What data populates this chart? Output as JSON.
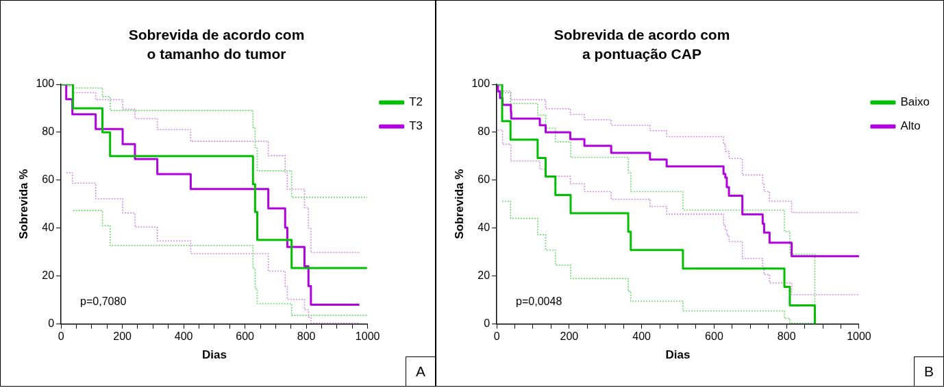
{
  "chart_data": [
    {
      "type": "step",
      "title": "Sobrevida de acordo com o tamanho do tumor",
      "xlabel": "Dias",
      "ylabel": "Sobrevida %",
      "xlim": [
        0,
        1000
      ],
      "ylim": [
        0,
        100
      ],
      "xticks": [
        0,
        {
          "value": 50,
          "label": null
        },
        {
          "value": 100,
          "label": null
        },
        {
          "value": 150,
          "label": null
        },
        200,
        {
          "value": 250,
          "label": null
        },
        {
          "value": 300,
          "label": null
        },
        {
          "value": 350,
          "label": null
        },
        400,
        {
          "value": 450,
          "label": null
        },
        {
          "value": 500,
          "label": null
        },
        {
          "value": 550,
          "label": null
        },
        600,
        {
          "value": 650,
          "label": null
        },
        {
          "value": 700,
          "label": null
        },
        {
          "value": 750,
          "label": null
        },
        800,
        {
          "value": 850,
          "label": null
        },
        {
          "value": 900,
          "label": null
        },
        {
          "value": 950,
          "label": null
        },
        1000
      ],
      "yticks": [
        0,
        20,
        40,
        60,
        80,
        100
      ],
      "grid": false,
      "legend": "right",
      "marker": "none",
      "line_style": "solid",
      "series": [
        {
          "name": "T2",
          "color": "#00c000",
          "x": [
            0,
            39,
            135,
            160,
            626,
            633,
            640,
            752,
            998
          ],
          "values": [
            100,
            90,
            80,
            70,
            58.3,
            46.7,
            35,
            23.3,
            23.3
          ]
        },
        {
          "name": "T3",
          "color": "#b000e0",
          "x": [
            0,
            17,
            37,
            113,
            201,
            241,
            314,
            423,
            676,
            731,
            738,
            794,
            807,
            815,
            973
          ],
          "values": [
            100,
            93.8,
            87.5,
            81.3,
            75,
            68.8,
            62.5,
            56.3,
            48.2,
            40.2,
            32.1,
            24,
            15.8,
            8,
            8
          ]
        },
        {
          "color": "#66dd66",
          "line_style": "dotted",
          "x": [
            39,
            135,
            160,
            626,
            633,
            640,
            752,
            998
          ],
          "values": [
            47.3,
            41,
            32.7,
            23.1,
            14.8,
            8.4,
            3.5,
            3.5
          ]
        },
        {
          "color": "#66dd66",
          "line_style": "dotted",
          "x": [
            39,
            135,
            160,
            626,
            633,
            640,
            752,
            998
          ],
          "values": [
            98.5,
            94.8,
            89.1,
            82,
            73.6,
            63.9,
            52.8,
            52.8
          ]
        },
        {
          "color": "#d888f0",
          "line_style": "dotted",
          "x": [
            17,
            37,
            113,
            201,
            241,
            314,
            423,
            676,
            731,
            738,
            794,
            807,
            815,
            973
          ],
          "values": [
            63.1,
            58.7,
            52.2,
            46.3,
            40.4,
            34.6,
            29.3,
            22,
            15.6,
            10.2,
            5.9,
            2.8,
            0.3,
            0.3
          ]
        },
        {
          "color": "#d888f0",
          "line_style": "dotted",
          "x": [
            17,
            37,
            113,
            201,
            241,
            314,
            423,
            676,
            731,
            738,
            794,
            807,
            815,
            973
          ],
          "values": [
            99.2,
            96.5,
            93.6,
            89.6,
            85.7,
            81.1,
            76.2,
            70.2,
            63.2,
            56.2,
            48.5,
            39.9,
            29.8,
            29.8
          ]
        }
      ],
      "annotations": [
        "p=0,7080",
        "A"
      ]
    },
    {
      "type": "step",
      "title": "Sobrevida de acordo com a pontuação CAP",
      "xlabel": "Dias",
      "ylabel": "Sobrevida %",
      "xlim": [
        0,
        1000
      ],
      "ylim": [
        0,
        100
      ],
      "xticks": [
        0,
        {
          "value": 50,
          "label": null
        },
        {
          "value": 100,
          "label": null
        },
        {
          "value": 150,
          "label": null
        },
        200,
        {
          "value": 250,
          "label": null
        },
        {
          "value": 300,
          "label": null
        },
        {
          "value": 350,
          "label": null
        },
        400,
        {
          "value": 450,
          "label": null
        },
        {
          "value": 500,
          "label": null
        },
        {
          "value": 550,
          "label": null
        },
        600,
        {
          "value": 650,
          "label": null
        },
        {
          "value": 700,
          "label": null
        },
        {
          "value": 750,
          "label": null
        },
        800,
        {
          "value": 850,
          "label": null
        },
        {
          "value": 900,
          "label": null
        },
        {
          "value": 950,
          "label": null
        },
        1000
      ],
      "yticks": [
        0,
        20,
        40,
        60,
        80,
        100
      ],
      "grid": false,
      "legend": "top right",
      "marker": "none",
      "line_style": "solid",
      "series": [
        {
          "name": "Baixo",
          "color": "#00c000",
          "x": [
            0,
            15,
            38,
            113,
            135,
            162,
            204,
            363,
            370,
            514,
            794,
            809,
            878
          ],
          "values": [
            100,
            84.6,
            76.9,
            69.2,
            61.5,
            53.8,
            46.2,
            38.5,
            30.8,
            23.1,
            15.4,
            7.7,
            0
          ]
        },
        {
          "name": "Alto",
          "color": "#b000e0",
          "x": [
            0,
            3,
            9,
            16,
            39,
            40,
            119,
            135,
            203,
            242,
            316,
            423,
            469,
            626,
            631,
            635,
            641,
            678,
            734,
            738,
            753,
            814,
            1000
          ],
          "values": [
            100,
            97.1,
            94.3,
            91.4,
            88.6,
            85.7,
            82.9,
            80,
            77.1,
            74.3,
            71.4,
            68.6,
            65.7,
            62.6,
            61.1,
            57.1,
            53.5,
            45.7,
            41.8,
            38.1,
            33.9,
            28.2,
            28.2
          ]
        },
        {
          "color": "#66dd66",
          "line_style": "dotted",
          "x": [
            15,
            38,
            113,
            135,
            162,
            204,
            363,
            370,
            514,
            794,
            809,
            878
          ],
          "values": [
            51.2,
            44,
            37.2,
            30.8,
            24.5,
            18.9,
            13.6,
            9.4,
            5.4,
            2.3,
            0.3,
            0
          ]
        },
        {
          "color": "#66dd66",
          "line_style": "dotted",
          "x": [
            15,
            38,
            113,
            135,
            162,
            204,
            363,
            370,
            514,
            794,
            809,
            878
          ],
          "values": [
            96.5,
            92,
            87.1,
            81.7,
            76,
            69.5,
            63.1,
            55.2,
            47.5,
            38.6,
            29,
            0
          ]
        },
        {
          "color": "#d888f0",
          "line_style": "dotted",
          "x": [
            3,
            9,
            16,
            39,
            40,
            119,
            135,
            203,
            242,
            316,
            423,
            469,
            626,
            631,
            635,
            641,
            678,
            734,
            738,
            753,
            814,
            1000
          ],
          "values": [
            80.9,
            80.9,
            75,
            68,
            68,
            64.6,
            61.6,
            58.5,
            55.2,
            52,
            49,
            45.8,
            41.3,
            39,
            37,
            34.4,
            27.3,
            23.5,
            20.6,
            17.1,
            12.2,
            12.2
          ]
        },
        {
          "color": "#d888f0",
          "line_style": "dotted",
          "x": [
            3,
            9,
            16,
            39,
            40,
            119,
            135,
            203,
            242,
            316,
            423,
            469,
            626,
            631,
            635,
            641,
            678,
            734,
            738,
            753,
            814,
            1000
          ],
          "values": [
            99.5,
            97.2,
            97.2,
            93.6,
            93.6,
            93.6,
            89.8,
            87.4,
            85.2,
            82.9,
            80.6,
            78.1,
            75,
            72,
            72,
            69,
            62.1,
            58.7,
            55.2,
            51.2,
            46.5,
            46.5
          ]
        }
      ],
      "annotations": [
        "p=0,0048",
        "B"
      ]
    }
  ]
}
